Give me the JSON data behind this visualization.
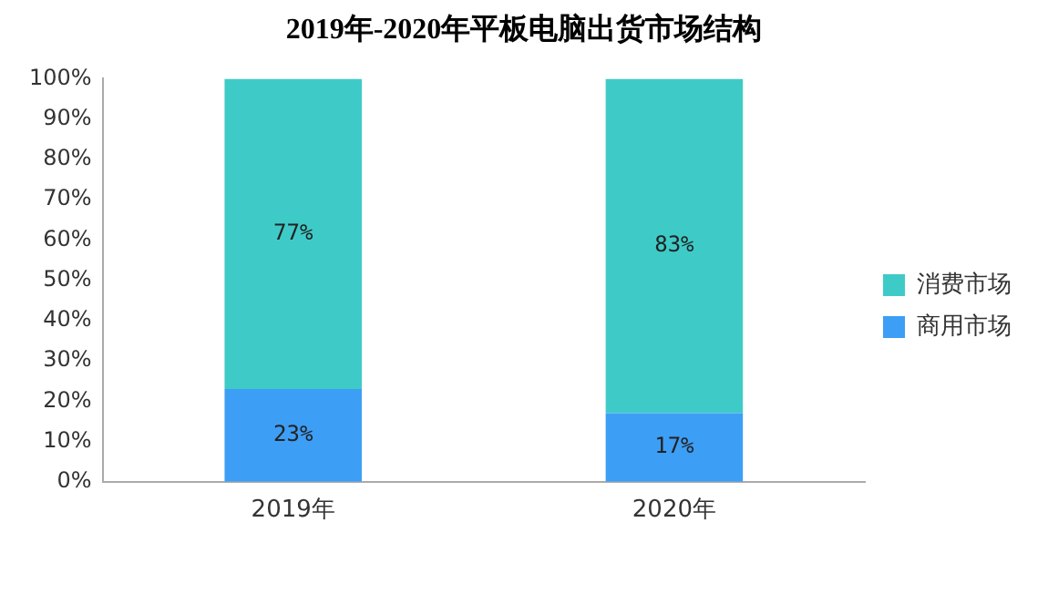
{
  "chart_data": {
    "type": "bar",
    "title": "2019年-2020年平板电脑出货市场结构",
    "categories": [
      "2019年",
      "2020年"
    ],
    "stacked": true,
    "legend": "right",
    "grid": false,
    "ylim": [
      0,
      100
    ],
    "yticks": [
      {
        "value": 0,
        "label": "0%"
      },
      {
        "value": 10,
        "label": "10%"
      },
      {
        "value": 20,
        "label": "20%"
      },
      {
        "value": 30,
        "label": "30%"
      },
      {
        "value": 40,
        "label": "40%"
      },
      {
        "value": 50,
        "label": "50%"
      },
      {
        "value": 60,
        "label": "60%"
      },
      {
        "value": 70,
        "label": "70%"
      },
      {
        "value": 80,
        "label": "80%"
      },
      {
        "value": 90,
        "label": "90%"
      },
      {
        "value": 100,
        "label": "100%"
      }
    ],
    "series": [
      {
        "name": "商用市场",
        "color": "#3d9ef5",
        "values": [
          23,
          17
        ],
        "value_labels": [
          "23%",
          "17%"
        ]
      },
      {
        "name": "消费市场",
        "color": "#3ecbc8",
        "values": [
          77,
          83
        ],
        "value_labels": [
          "77%",
          "83%"
        ]
      }
    ]
  }
}
